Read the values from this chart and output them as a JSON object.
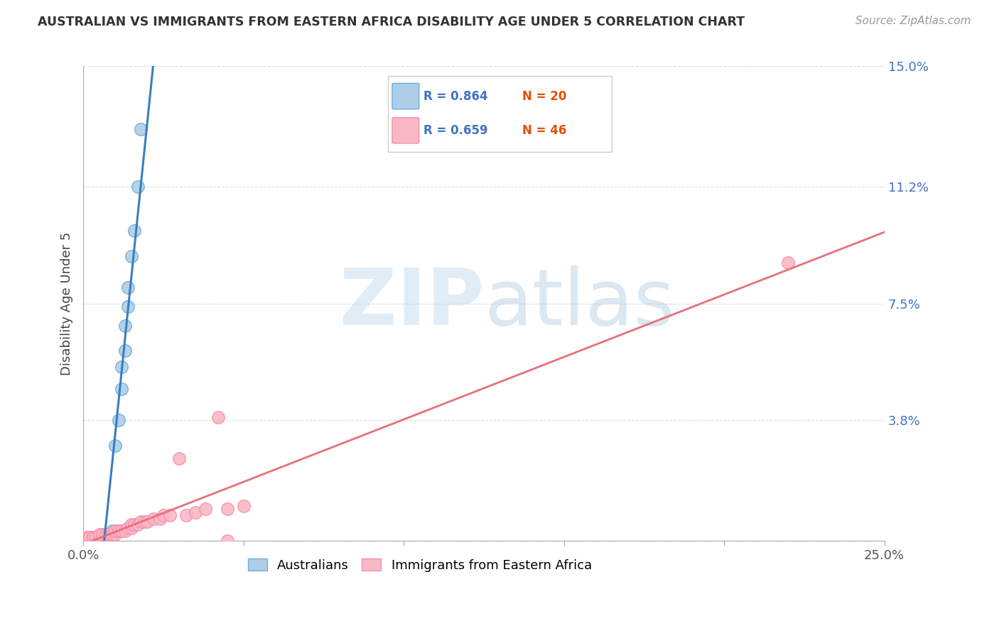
{
  "title": "AUSTRALIAN VS IMMIGRANTS FROM EASTERN AFRICA DISABILITY AGE UNDER 5 CORRELATION CHART",
  "source": "Source: ZipAtlas.com",
  "ylabel": "Disability Age Under 5",
  "xlim": [
    0,
    0.25
  ],
  "ylim": [
    0,
    0.15
  ],
  "ytick_vals": [
    0,
    0.038,
    0.075,
    0.112,
    0.15
  ],
  "ytick_labels": [
    "",
    "3.8%",
    "7.5%",
    "11.2%",
    "15.0%"
  ],
  "xtick_vals": [
    0,
    0.05,
    0.1,
    0.15,
    0.2,
    0.25
  ],
  "xtick_labels": [
    "0.0%",
    "",
    "",
    "",
    "",
    "25.0%"
  ],
  "background_color": "#ffffff",
  "legend_r1": "R = 0.864",
  "legend_n1": "N = 20",
  "legend_r2": "R = 0.659",
  "legend_n2": "N = 46",
  "blue_scatter_color": "#aecde8",
  "blue_edge_color": "#6baed6",
  "pink_scatter_color": "#f9b9c4",
  "pink_edge_color": "#f78fb3",
  "blue_line_color": "#3a7ebf",
  "pink_line_color": "#e8707a",
  "ytick_color": "#4472c4",
  "title_color": "#333333",
  "source_color": "#999999",
  "grid_color": "#dddddd",
  "legend_border_color": "#cccccc",
  "aus_x": [
    0.003,
    0.005,
    0.006,
    0.007,
    0.008,
    0.009,
    0.009,
    0.01,
    0.01,
    0.011,
    0.012,
    0.012,
    0.013,
    0.013,
    0.014,
    0.014,
    0.015,
    0.016,
    0.017,
    0.018
  ],
  "aus_y": [
    0.001,
    0.001,
    0.001,
    0.002,
    0.002,
    0.002,
    0.003,
    0.003,
    0.03,
    0.038,
    0.048,
    0.055,
    0.06,
    0.068,
    0.074,
    0.08,
    0.09,
    0.098,
    0.112,
    0.13
  ],
  "ea_x": [
    0.001,
    0.002,
    0.002,
    0.003,
    0.003,
    0.004,
    0.004,
    0.005,
    0.005,
    0.005,
    0.006,
    0.006,
    0.007,
    0.007,
    0.008,
    0.008,
    0.009,
    0.009,
    0.01,
    0.01,
    0.011,
    0.011,
    0.012,
    0.012,
    0.013,
    0.014,
    0.015,
    0.015,
    0.016,
    0.017,
    0.018,
    0.019,
    0.02,
    0.022,
    0.024,
    0.025,
    0.027,
    0.03,
    0.032,
    0.035,
    0.038,
    0.042,
    0.045,
    0.05,
    0.22,
    0.045
  ],
  "ea_y": [
    0.001,
    0.001,
    0.001,
    0.001,
    0.001,
    0.001,
    0.001,
    0.001,
    0.001,
    0.002,
    0.001,
    0.002,
    0.002,
    0.002,
    0.002,
    0.002,
    0.002,
    0.002,
    0.002,
    0.003,
    0.003,
    0.003,
    0.003,
    0.003,
    0.003,
    0.004,
    0.004,
    0.005,
    0.005,
    0.005,
    0.006,
    0.006,
    0.006,
    0.007,
    0.007,
    0.008,
    0.008,
    0.026,
    0.008,
    0.009,
    0.01,
    0.039,
    0.01,
    0.011,
    0.088,
    0.0
  ]
}
